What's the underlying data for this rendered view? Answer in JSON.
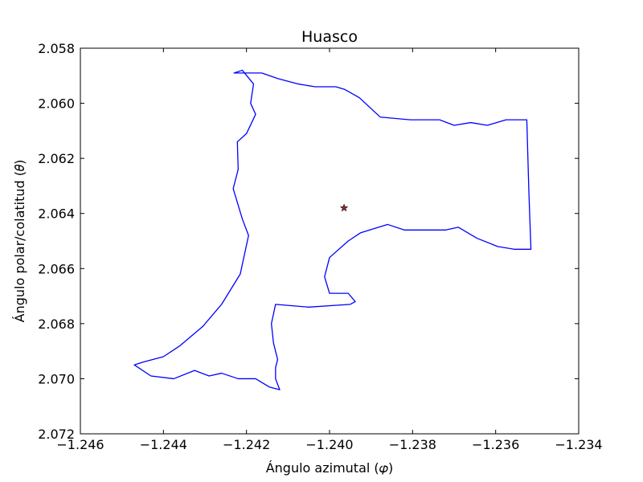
{
  "chart_data": {
    "type": "line",
    "title": "Huasco",
    "xlabel": "Ángulo azimutal (𝜑)",
    "ylabel": "Ángulo polar/colatitud (𝜃)",
    "xlim": [
      -1.246,
      -1.234
    ],
    "ylim": [
      2.058,
      2.072
    ],
    "y_inverted": true,
    "grid": false,
    "x_ticks": [
      -1.246,
      -1.244,
      -1.242,
      -1.24,
      -1.238,
      -1.236,
      -1.234
    ],
    "x_tick_labels": [
      "−1.246",
      "−1.244",
      "−1.242",
      "−1.240",
      "−1.238",
      "−1.236",
      "−1.234"
    ],
    "y_ticks": [
      2.058,
      2.06,
      2.062,
      2.064,
      2.066,
      2.068,
      2.07,
      2.072
    ],
    "y_tick_labels": [
      "2.058",
      "2.060",
      "2.062",
      "2.064",
      "2.066",
      "2.068",
      "2.070",
      "2.072"
    ],
    "colors": {
      "boundary": "#0000ff",
      "marker_fill": "#a52a2a",
      "axes": "#000000"
    },
    "series": [
      {
        "kind": "boundary",
        "x": [
          -1.24163,
          -1.24125,
          -1.24075,
          -1.24035,
          -1.23985,
          -1.23963,
          -1.23928,
          -1.23878,
          -1.23805,
          -1.23735,
          -1.237,
          -1.2366,
          -1.2362,
          -1.23575,
          -1.23525,
          -1.2352,
          -1.23515,
          -1.23555,
          -1.23595,
          -1.23645,
          -1.2369,
          -1.2372,
          -1.2376,
          -1.2382,
          -1.2386,
          -1.23925,
          -1.23955,
          -1.24,
          -1.24012,
          -1.24,
          -1.23955,
          -1.23938,
          -1.2395,
          -1.2405,
          -1.2413,
          -1.2414,
          -1.24135,
          -1.24125,
          -1.2413,
          -1.2413,
          -1.2412,
          -1.24145,
          -1.24178,
          -1.2422,
          -1.2426,
          -1.2429,
          -1.24325,
          -1.24375,
          -1.2443,
          -1.2447,
          -1.2445,
          -1.244,
          -1.2436,
          -1.24305,
          -1.2426,
          -1.24215,
          -1.24195,
          -1.2421,
          -1.24232,
          -1.2422,
          -1.24222,
          -1.242,
          -1.24178,
          -1.2419,
          -1.24183,
          -1.2421,
          -1.2423,
          -1.2419,
          -1.2418,
          -1.24168,
          -1.24163
        ],
        "y": [
          2.0589,
          2.0591,
          2.0593,
          2.0594,
          2.0594,
          2.0595,
          2.0598,
          2.0605,
          2.0606,
          2.0606,
          2.0608,
          2.0607,
          2.0608,
          2.0606,
          2.0606,
          2.0632,
          2.0653,
          2.0653,
          2.0652,
          2.0649,
          2.0645,
          2.0646,
          2.0646,
          2.0646,
          2.0644,
          2.0647,
          2.065,
          2.0656,
          2.0663,
          2.0669,
          2.0669,
          2.0672,
          2.0673,
          2.0674,
          2.0673,
          2.068,
          2.0687,
          2.0693,
          2.0696,
          2.07,
          2.0704,
          2.0703,
          2.07,
          2.07,
          2.0698,
          2.0699,
          2.0697,
          2.07,
          2.0699,
          2.0695,
          2.0694,
          2.0692,
          2.0688,
          2.0681,
          2.0673,
          2.0662,
          2.0648,
          2.0642,
          2.0631,
          2.0624,
          2.0614,
          2.0611,
          2.0604,
          2.06,
          2.0593,
          2.0588,
          2.0589,
          2.0589,
          2.0589,
          2.0589,
          2.0589
        ]
      },
      {
        "kind": "point",
        "marker": "star",
        "x": [
          -1.23965
        ],
        "y": [
          2.0638
        ]
      }
    ]
  }
}
